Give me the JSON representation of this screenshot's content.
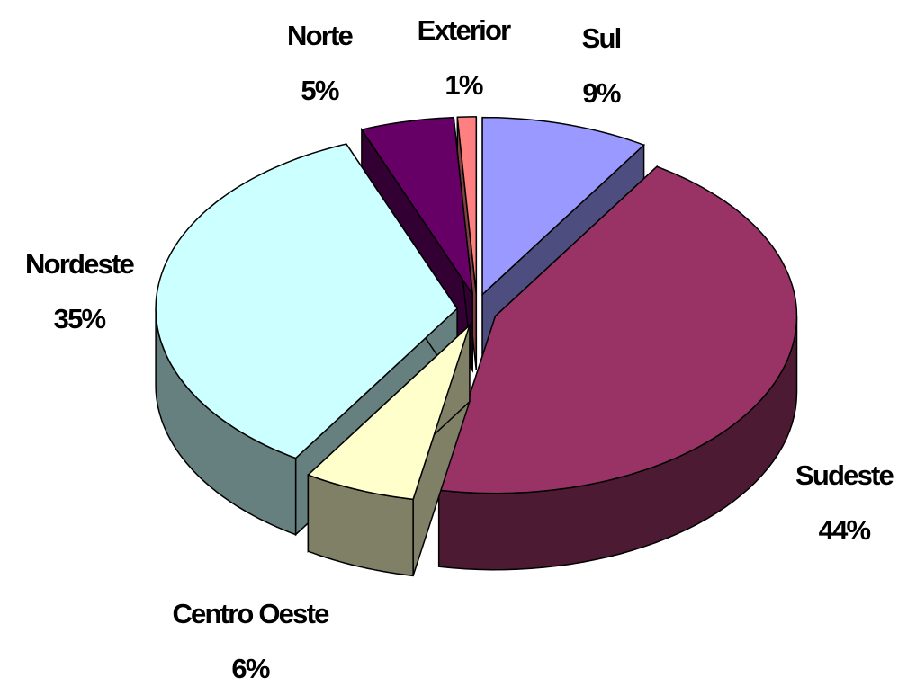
{
  "chart_data": {
    "type": "pie",
    "categories": [
      "Sul",
      "Sudeste",
      "Centro Oeste",
      "Nordeste",
      "Norte",
      "Exterior"
    ],
    "values": [
      9,
      44,
      6,
      35,
      5,
      1
    ],
    "value_labels": [
      "9%",
      "44%",
      "6%",
      "35%",
      "5%",
      "1%"
    ],
    "colors": [
      "#9999ff",
      "#993366",
      "#ffffcc",
      "#ccffff",
      "#660066",
      "#ff8080"
    ],
    "three_d": true,
    "exploded": true
  }
}
